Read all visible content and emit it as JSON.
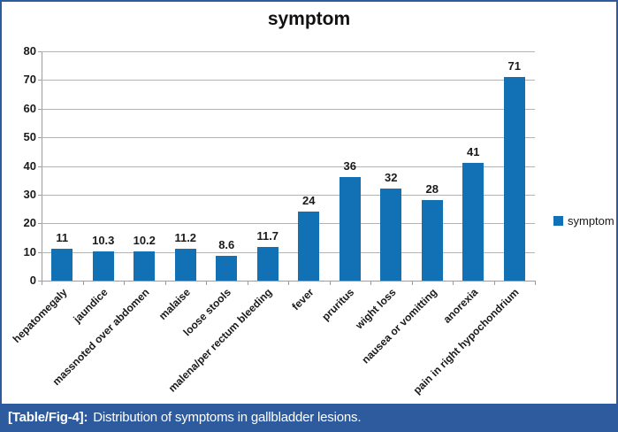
{
  "chart_data": {
    "type": "bar",
    "title": "symptom",
    "categories": [
      "hepatomegaly",
      "jaundice",
      "massnoted over abdomen",
      "malaise",
      "loose stools",
      "malena/per rectum bleeding",
      "fever",
      "pruritus",
      "wight loss",
      "nausea or vomitting",
      "anorexia",
      "pain in right hypochondrium"
    ],
    "values": [
      11,
      10.3,
      10.2,
      11.2,
      8.6,
      11.7,
      24,
      36,
      32,
      28,
      41,
      71
    ],
    "value_labels": [
      "11",
      "10.3",
      "10.2",
      "11.2",
      "8.6",
      "11.7",
      "24",
      "36",
      "32",
      "28",
      "41",
      "71"
    ],
    "xlabel": "",
    "ylabel": "",
    "ylim": [
      0,
      80
    ],
    "yticks": [
      0,
      10,
      20,
      30,
      40,
      50,
      60,
      70,
      80
    ],
    "grid": true,
    "legend": {
      "label": "symptom",
      "position": "right"
    },
    "bar_color": "#1270b5",
    "gridline_color": "#b3b3b3",
    "axis_color": "#9c9c9c"
  },
  "caption": {
    "tag": "[Table/Fig-4]:",
    "text": "Distribution of symptoms in gallbladder lesions."
  },
  "colors": {
    "frame_border": "#2d5b9e",
    "caption_bg": "#2d5b9e",
    "caption_text": "#ffffff",
    "background": "#ffffff"
  }
}
